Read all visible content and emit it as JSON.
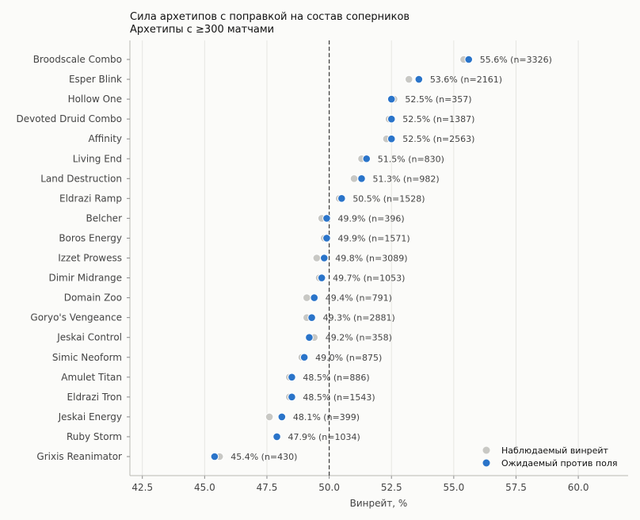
{
  "chart_data": {
    "type": "scatter",
    "title_line1": "Сила архетипов с поправкой на состав соперников",
    "title_line2": "Архетипы с ≥300 матчами",
    "xlabel": "Винрейт, %",
    "xlim": [
      42,
      62
    ],
    "xticks": [
      "42.5",
      "45.0",
      "47.5",
      "50.0",
      "52.5",
      "55.0",
      "57.5",
      "60.0"
    ],
    "reference_line": 50.0,
    "grid": "vertical",
    "legend_position": "bottom-right",
    "legend": {
      "observed": "Наблюдаемый винрейт",
      "expected": "Ожидаемый против поля"
    },
    "colors": {
      "observed": "#c8c8c4",
      "expected": "#2a74c9",
      "ref": "#444444"
    },
    "categories": [
      "Broodscale Combo",
      "Esper Blink",
      "Hollow One",
      "Devoted Druid Combo",
      "Affinity",
      "Living End",
      "Land Destruction",
      "Eldrazi Ramp",
      "Belcher",
      "Boros Energy",
      "Izzet Prowess",
      "Dimir Midrange",
      "Domain Zoo",
      "Goryo's Vengeance",
      "Jeskai Control",
      "Simic Neoform",
      "Amulet Titan",
      "Eldrazi Tron",
      "Jeskai Energy",
      "Ruby Storm",
      "Grixis Reanimator"
    ],
    "observed": [
      55.4,
      53.2,
      52.6,
      52.4,
      52.3,
      51.3,
      51.0,
      50.4,
      49.7,
      49.8,
      49.5,
      49.6,
      49.1,
      49.1,
      49.4,
      48.9,
      48.4,
      48.4,
      47.6,
      47.9,
      45.6
    ],
    "expected": [
      55.6,
      53.6,
      52.5,
      52.5,
      52.5,
      51.5,
      51.3,
      50.5,
      49.9,
      49.9,
      49.8,
      49.7,
      49.4,
      49.3,
      49.2,
      49.0,
      48.5,
      48.5,
      48.1,
      47.9,
      45.4
    ],
    "labels": [
      "55.6%  (n=3326)",
      "53.6%  (n=2161)",
      "52.5%  (n=357)",
      "52.5%  (n=1387)",
      "52.5%  (n=2563)",
      "51.5%  (n=830)",
      "51.3%  (n=982)",
      "50.5%  (n=1528)",
      "49.9%  (n=396)",
      "49.9%  (n=1571)",
      "49.8%  (n=3089)",
      "49.7%  (n=1053)",
      "49.4%  (n=791)",
      "49.3%  (n=2881)",
      "49.2%  (n=358)",
      "49.0%  (n=875)",
      "48.5%  (n=886)",
      "48.5%  (n=1543)",
      "48.1%  (n=399)",
      "47.9%  (n=1034)",
      "45.4%  (n=430)"
    ]
  }
}
